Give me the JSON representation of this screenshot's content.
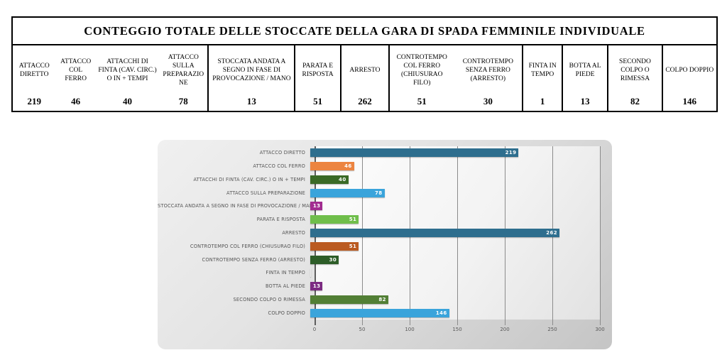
{
  "table": {
    "title": "CONTEGGIO TOTALE DELLE STOCCATE DELLA GARA DI SPADA FEMMINILE INDIVIDUALE",
    "columns": [
      {
        "label": "ATTACCO DIRETTO",
        "value": "219",
        "divider": false,
        "width_pct": 6.1
      },
      {
        "label": "ATTACCO COL FERRO",
        "value": "46",
        "divider": false,
        "width_pct": 5.7
      },
      {
        "label": "ATTACCHI DI FINTA (CAV. CIRC.) O IN + TEMPI",
        "value": "40",
        "divider": false,
        "width_pct": 9.0
      },
      {
        "label": "ATTACCO SULLA PREPARAZIONE",
        "value": "78",
        "divider": false,
        "width_pct": 6.9
      },
      {
        "label": "STOCCATA ANDATA A SEGNO IN FASE DI PROVOCAZIONE / MANO",
        "value": "13",
        "divider": true,
        "width_pct": 12.3
      },
      {
        "label": "PARATA E RISPOSTA",
        "value": "51",
        "divider": true,
        "width_pct": 6.5
      },
      {
        "label": "ARRESTO",
        "value": "262",
        "divider": true,
        "width_pct": 6.9
      },
      {
        "label": "CONTROTEMPO COL FERRO (CHIUSURAO FILO)",
        "value": "51",
        "divider": true,
        "width_pct": 9.3
      },
      {
        "label": "CONTROTEMPO SENZA FERRO (ARRESTO)",
        "value": "30",
        "divider": false,
        "width_pct": 9.7
      },
      {
        "label": "FINTA IN TEMPO",
        "value": "1",
        "divider": true,
        "width_pct": 5.6
      },
      {
        "label": "BOTTA AL PIEDE",
        "value": "13",
        "divider": true,
        "width_pct": 6.5
      },
      {
        "label": "SECONDO COLPO O RIMESSA",
        "value": "82",
        "divider": true,
        "width_pct": 7.7
      },
      {
        "label": "COLPO DOPPIO",
        "value": "146",
        "divider": true,
        "width_pct": 7.8
      }
    ]
  },
  "chart_data": {
    "type": "bar",
    "orientation": "horizontal",
    "title": "",
    "categories": [
      "ATTACCO DIRETTO",
      "ATTACCO COL FERRO",
      "ATTACCHI DI FINTA (CAV. CIRC.) O IN + TEMPI",
      "ATTACCO SULLA PREPARAZIONE",
      "STOCCATA ANDATA A SEGNO IN FASE DI PROVOCAZIONE / MANO",
      "PARATA E RISPOSTA",
      "ARRESTO",
      "CONTROTEMPO COL FERRO (CHIUSURAO FILO)",
      "CONTROTEMPO SENZA FERRO (ARRESTO)",
      "FINTA IN TEMPO",
      "BOTTA AL PIEDE",
      "SECONDO COLPO O RIMESSA",
      "COLPO DOPPIO"
    ],
    "values": [
      219,
      46,
      40,
      78,
      13,
      51,
      262,
      51,
      30,
      1,
      13,
      82,
      146
    ],
    "bar_colors": [
      "#2e6e8e",
      "#ec8440",
      "#3a6a26",
      "#3aa4db",
      "#a22c90",
      "#6fbe4b",
      "#2e6e8e",
      "#ba5a20",
      "#2d5d28",
      "#e9e9e9",
      "#7c2b82",
      "#527f35",
      "#3aa4db"
    ],
    "xlabel": "",
    "ylabel": "",
    "xlim": [
      0,
      300
    ],
    "x_ticks": [
      "0",
      "50",
      "100",
      "150",
      "200",
      "250",
      "300"
    ],
    "grid": true,
    "legend": false,
    "value_labels": "inside-end",
    "value_label_color": "#ffffff",
    "category_label_color": "#555555",
    "tick_label_color": "#595959",
    "gridline_color": "#8b8b8b",
    "axis_color": "#5e5e5e"
  }
}
